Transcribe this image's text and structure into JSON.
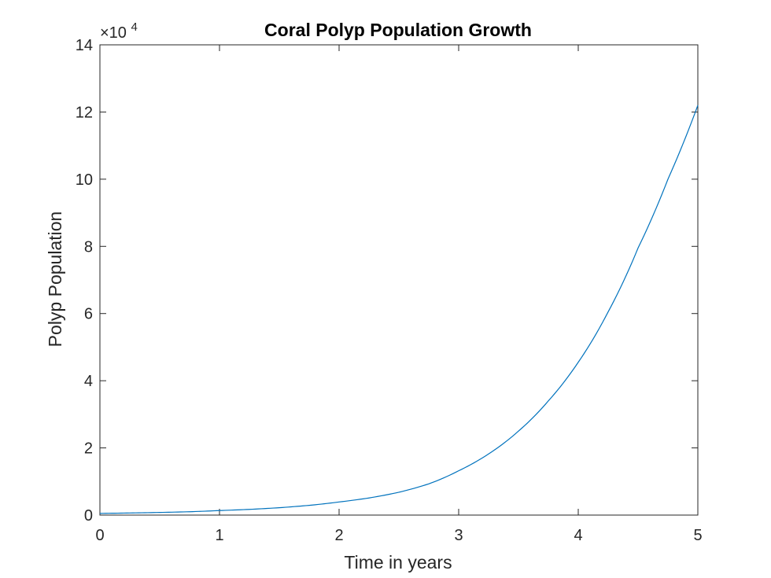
{
  "chart_data": {
    "type": "line",
    "title": "Coral Polyp Population Growth",
    "xlabel": "Time in years",
    "ylabel": "Polyp Population",
    "xlim": [
      0,
      5
    ],
    "ylim": [
      0,
      140000
    ],
    "x_ticks": [
      0,
      1,
      2,
      3,
      4,
      5
    ],
    "x_tick_labels": [
      "0",
      "1",
      "2",
      "3",
      "4",
      "5"
    ],
    "y_ticks": [
      0,
      20000,
      40000,
      60000,
      80000,
      100000,
      120000,
      140000
    ],
    "y_tick_labels": [
      "0",
      "2",
      "4",
      "6",
      "8",
      "10",
      "12",
      "14"
    ],
    "y_exponent": {
      "prefix": "×10",
      "power": "4"
    },
    "grid": false,
    "line_color": "#0072BD",
    "series": [
      {
        "x": [
          0,
          0.25,
          0.5,
          0.75,
          1,
          1.25,
          1.5,
          1.75,
          2,
          2.25,
          2.5,
          2.75,
          3,
          3.25,
          3.5,
          3.75,
          4,
          4.25,
          4.5,
          4.75,
          5
        ],
        "values": [
          500,
          630,
          790,
          1000,
          1350,
          1700,
          2200,
          2900,
          3900,
          5100,
          6800,
          9300,
          13200,
          18200,
          25000,
          34000,
          45500,
          60500,
          79500,
          100000,
          122000
        ]
      }
    ]
  }
}
